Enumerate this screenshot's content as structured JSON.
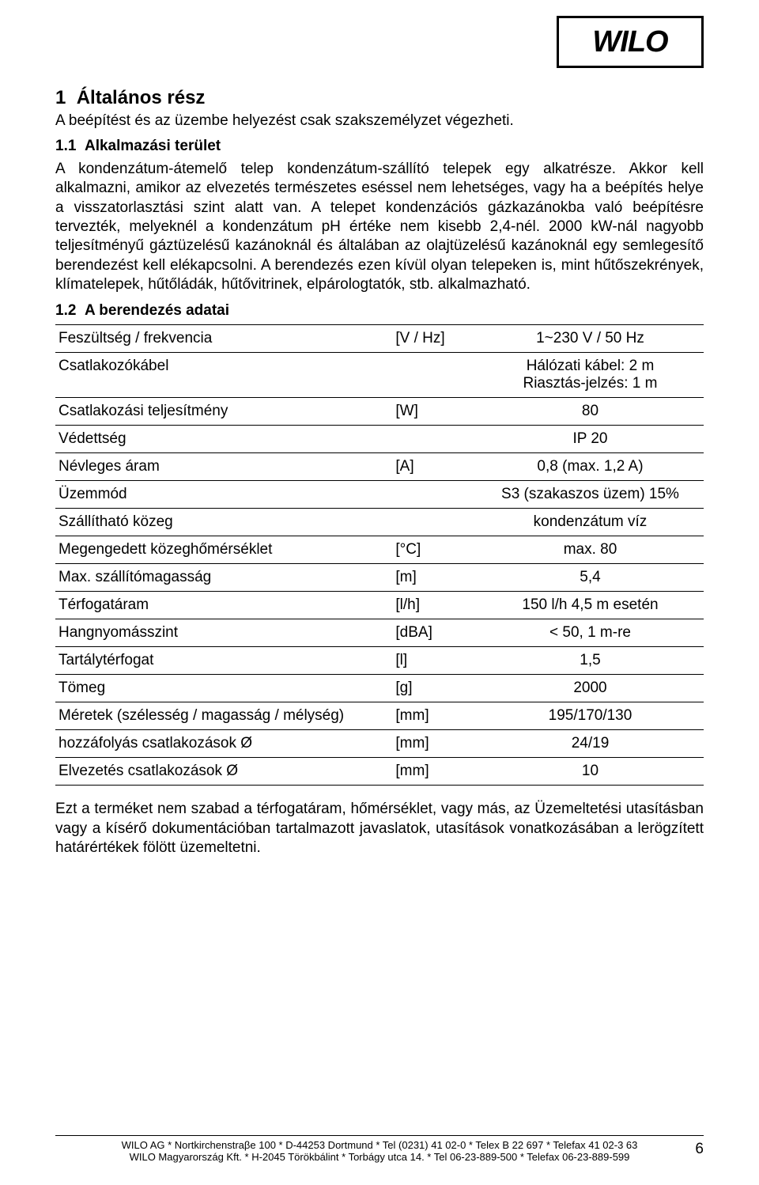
{
  "logo_text": "WILO",
  "section_number": "1",
  "section_title": "Általános rész",
  "section_subtitle": "A beépítést és az üzembe helyezést csak szakszemélyzet végezheti.",
  "sub1_number": "1.1",
  "sub1_title": "Alkalmazási terület",
  "para1": "A kondenzátum-átemelő telep kondenzátum-szállító telepek egy alkatrésze. Akkor kell alkalmazni, amikor az elvezetés természetes eséssel nem lehetséges, vagy ha a beépítés helye a visszatorlasztási szint alatt van. A telepet kondenzációs gázkazánokba való beépítésre tervezték, melyeknél a kondenzátum pH értéke nem kisebb 2,4-nél. 2000 kW-nál nagyobb teljesítményű gáztüzelésű kazánoknál és általában az olajtüzelésű kazánoknál egy semlegesítő berendezést kell elékapcsolni. A berendezés ezen kívül olyan telepeken is, mint hűtőszekrények, klímatelepek, hűtőládák, hűtővitrinek, elpárologtatók, stb. alkalmazható.",
  "sub2_number": "1.2",
  "sub2_title": "A berendezés adatai",
  "table": {
    "rows": [
      {
        "label": "Feszültség / frekvencia",
        "unit": "[V / Hz]",
        "value": "1~230 V / 50 Hz"
      },
      {
        "label": "Csatlakozókábel",
        "unit": "",
        "value": "Hálózati kábel: 2 m\nRiasztás-jelzés: 1 m"
      },
      {
        "label": "Csatlakozási teljesítmény",
        "unit": "[W]",
        "value": "80"
      },
      {
        "label": "Védettség",
        "unit": "",
        "value": "IP 20"
      },
      {
        "label": "Névleges áram",
        "unit": "[A]",
        "value": "0,8 (max. 1,2 A)"
      },
      {
        "label": "Üzemmód",
        "unit": "",
        "value": "S3 (szakaszos üzem) 15%"
      },
      {
        "label": "Szállítható közeg",
        "unit": "",
        "value": "kondenzátum víz"
      },
      {
        "label": "Megengedett közeghőmérséklet",
        "unit": "[°C]",
        "value": "max. 80"
      },
      {
        "label": "Max. szállítómagasság",
        "unit": "[m]",
        "value": "5,4"
      },
      {
        "label": "Térfogatáram",
        "unit": "[l/h]",
        "value": "150 l/h 4,5 m esetén"
      },
      {
        "label": "Hangnyomásszint",
        "unit": "[dBA]",
        "value": "< 50, 1 m-re"
      },
      {
        "label": "Tartálytérfogat",
        "unit": "[l]",
        "value": "1,5"
      },
      {
        "label": "Tömeg",
        "unit": "[g]",
        "value": "2000"
      },
      {
        "label": "Méretek (szélesség / magasság / mélység)",
        "unit": "[mm]",
        "value": "195/170/130"
      },
      {
        "label": "hozzáfolyás csatlakozások Ø",
        "unit": "[mm]",
        "value": "24/19"
      },
      {
        "label": "Elvezetés csatlakozások Ø",
        "unit": "[mm]",
        "value": "10"
      }
    ]
  },
  "para2": "Ezt a terméket nem szabad a térfogatáram, hőmérséklet, vagy más, az Üzemeltetési utasításban vagy a kísérő dokumentációban tartalmazott javaslatok, utasítások vonatkozásában a lerögzített határértékek fölött üzemeltetni.",
  "footer_line1": "WILO AG * Nortkirchenstraβe 100 * D-44253 Dortmund * Tel (0231) 41 02-0 * Telex B 22 697 * Telefax 41 02-3 63",
  "footer_line2": "WILO Magyarország Kft. * H-2045 Törökbálint * Torbágy utca 14. * Tel 06-23-889-500 * Telefax 06-23-889-599",
  "page_number": "6"
}
